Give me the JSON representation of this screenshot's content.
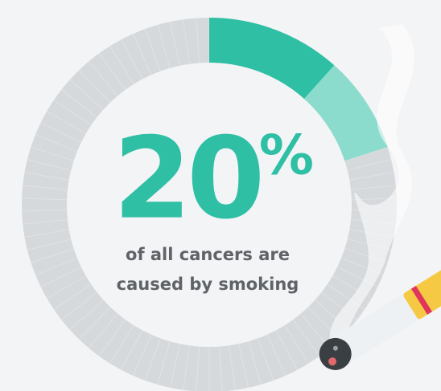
{
  "chart_data": {
    "type": "donut",
    "value": 20,
    "unit": "%",
    "max": 100,
    "color": "#2ebfa5",
    "track_color": "#d6d9dc",
    "caption": [
      "of all cancers are",
      "caused by smoking"
    ]
  }
}
